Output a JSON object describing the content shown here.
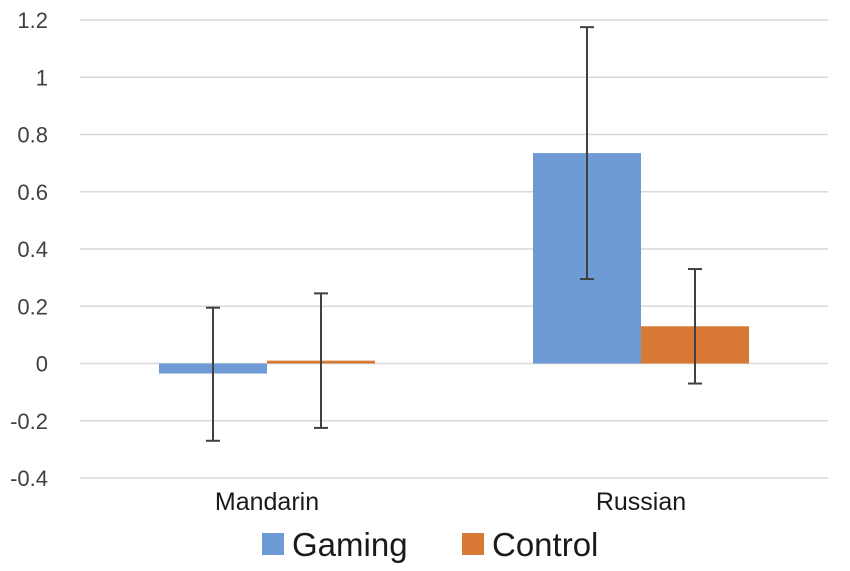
{
  "chart_data": {
    "type": "bar",
    "categories": [
      "Mandarin",
      "Russian"
    ],
    "series": [
      {
        "name": "Gaming",
        "color": "#6e9bd6",
        "values": [
          -0.035,
          0.735
        ],
        "error_low": [
          -0.27,
          0.295
        ],
        "error_high": [
          0.195,
          1.175
        ]
      },
      {
        "name": "Control",
        "color": "#d77935",
        "values": [
          0.01,
          0.13
        ],
        "error_low": [
          -0.225,
          -0.07
        ],
        "error_high": [
          0.245,
          0.33
        ]
      }
    ],
    "ylim": [
      -0.4,
      1.2
    ],
    "yticks": [
      -0.4,
      -0.2,
      0,
      0.2,
      0.4,
      0.6,
      0.8,
      1,
      1.2
    ],
    "ytick_labels": [
      "-0.4",
      "-0.2",
      "0",
      "0.2",
      "0.4",
      "0.6",
      "0.8",
      "1",
      "1.2"
    ],
    "grid": true,
    "legend_position": "bottom",
    "title": "",
    "xlabel": "",
    "ylabel": ""
  }
}
